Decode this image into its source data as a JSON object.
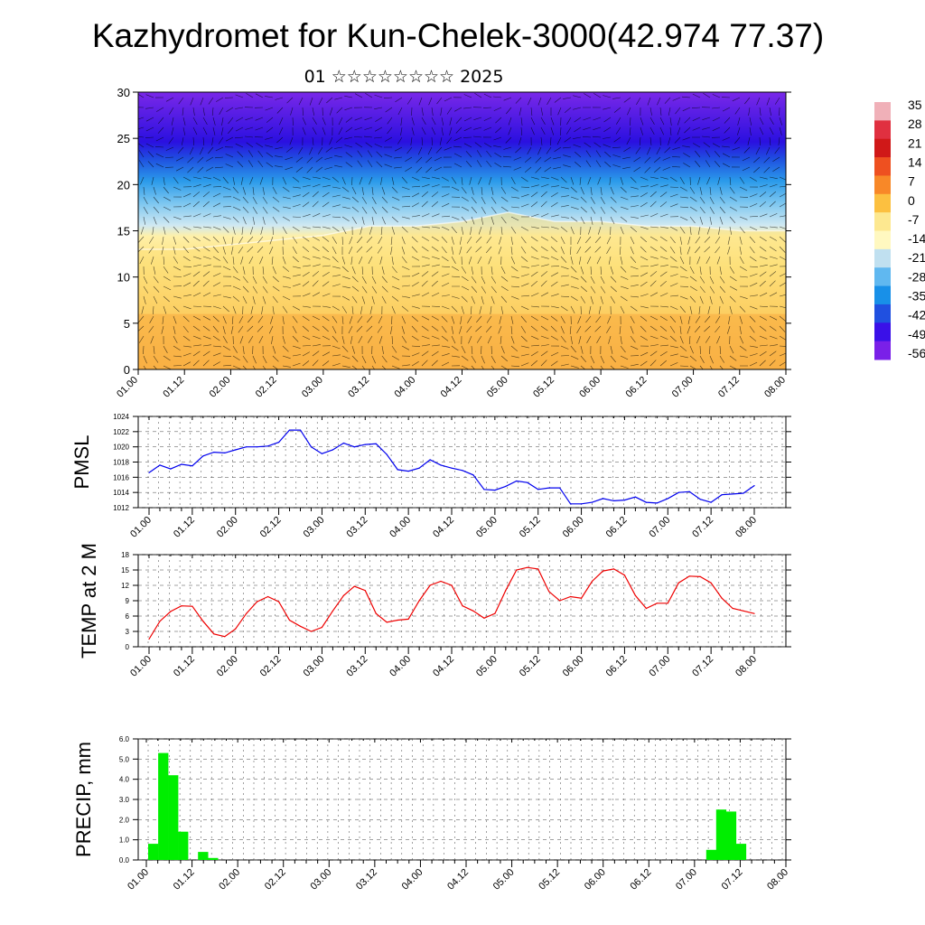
{
  "title": "Kazhydromet for Kun-Chelek-3000(42.974 77.37)",
  "subtitle": "01 ☆☆☆☆☆☆☆☆ 2025",
  "time_labels": [
    "01.00",
    "01.12",
    "02.00",
    "02.12",
    "03.00",
    "03.12",
    "04.00",
    "04.12",
    "05.00",
    "05.12",
    "06.00",
    "06.12",
    "07.00",
    "07.12",
    "08.00"
  ],
  "colorbar": {
    "labels": [
      "35",
      "28",
      "21",
      "14",
      "7",
      "0",
      "-7",
      "-14",
      "-21",
      "-28",
      "-35",
      "-42",
      "-49",
      "-56"
    ],
    "colors": [
      "#f0b0b8",
      "#e03040",
      "#d01818",
      "#ee5020",
      "#f88828",
      "#fcc040",
      "#fde890",
      "#fff8c0",
      "#c0e0f0",
      "#60b8f0",
      "#1890e8",
      "#2050e0",
      "#3a10e8",
      "#7a20e8"
    ]
  },
  "chart_data": [
    {
      "type": "heatmap",
      "title": "",
      "xlabel": "",
      "ylabel": "",
      "x": [
        "01.00",
        "01.12",
        "02.00",
        "02.12",
        "03.00",
        "03.12",
        "04.00",
        "04.12",
        "05.00",
        "05.12",
        "06.00",
        "06.12",
        "07.00",
        "07.12",
        "08.00"
      ],
      "ylim": [
        0,
        30
      ],
      "yticks": [
        0,
        5,
        10,
        15,
        20,
        25,
        30
      ],
      "freezing_level": [
        13,
        13,
        13.5,
        14,
        14.5,
        15.5,
        15.5,
        16,
        17,
        16,
        16,
        15.5,
        15.5,
        15,
        15
      ],
      "units": "temperature (colorbar) with wind barbs"
    },
    {
      "type": "line",
      "ylabel": "PMSL",
      "ylim": [
        1012,
        1024
      ],
      "yticks": [
        1012,
        1014,
        1016,
        1018,
        1020,
        1022,
        1024
      ],
      "series": [
        {
          "color": "#0000ee",
          "values": [
            1016.6,
            1017.6,
            1017.1,
            1017.7,
            1017.5,
            1018.8,
            1019.3,
            1019.2,
            1019.6,
            1020.0,
            1020.0,
            1020.1,
            1020.6,
            1022.2,
            1022.2,
            1020.0,
            1019.1,
            1019.6,
            1020.5,
            1020.0,
            1020.3,
            1020.4,
            1019.0,
            1017.0,
            1016.8,
            1017.2,
            1018.3,
            1017.6,
            1017.2,
            1016.9,
            1016.3,
            1014.4,
            1014.3,
            1014.8,
            1015.5,
            1015.3,
            1014.4,
            1014.6,
            1014.6,
            1012.5,
            1012.5,
            1012.7,
            1013.2,
            1012.9,
            1013.0,
            1013.4,
            1012.7,
            1012.6,
            1013.2,
            1014.0,
            1014.1,
            1013.1,
            1012.7,
            1013.7,
            1013.8,
            1013.9,
            1014.9
          ]
        }
      ]
    },
    {
      "type": "line",
      "ylabel": "TEMP at 2 M",
      "ylim": [
        0,
        18
      ],
      "yticks": [
        0,
        3,
        6,
        9,
        12,
        15,
        18
      ],
      "series": [
        {
          "color": "#ee0000",
          "values": [
            1.5,
            5.0,
            6.9,
            8.0,
            7.9,
            5.0,
            2.5,
            2.0,
            3.5,
            6.5,
            8.8,
            9.8,
            8.8,
            5.2,
            4.0,
            3.0,
            3.8,
            7.0,
            10.0,
            11.8,
            11.0,
            6.5,
            4.8,
            5.2,
            5.4,
            9.0,
            12.0,
            12.8,
            12.0,
            8.0,
            7.0,
            5.6,
            6.5,
            11.0,
            15.0,
            15.5,
            15.2,
            10.8,
            9.0,
            9.8,
            9.5,
            12.8,
            14.8,
            15.2,
            14.0,
            10.0,
            7.5,
            8.5,
            8.5,
            12.5,
            13.8,
            13.7,
            12.5,
            9.5,
            7.5,
            7.0,
            6.5
          ]
        }
      ]
    },
    {
      "type": "bar",
      "ylabel": "PRECIP, mm",
      "ylim": [
        0,
        6
      ],
      "yticks": [
        "0.0",
        "1.0",
        "2.0",
        "3.0",
        "4.0",
        "5.0",
        "6.0"
      ],
      "series": [
        {
          "color": "#00ee00",
          "values": [
            0,
            0.8,
            5.3,
            4.2,
            1.4,
            0,
            0.4,
            0.1,
            0,
            0,
            0,
            0,
            0,
            0,
            0,
            0,
            0,
            0,
            0,
            0,
            0,
            0,
            0,
            0,
            0,
            0,
            0,
            0,
            0,
            0,
            0,
            0,
            0,
            0,
            0,
            0,
            0,
            0,
            0,
            0,
            0,
            0,
            0,
            0,
            0,
            0,
            0,
            0,
            0,
            0,
            0,
            0,
            0,
            0,
            0,
            0,
            0,
            0.5,
            2.5,
            2.4,
            0.8,
            0,
            0,
            0,
            0
          ]
        }
      ]
    }
  ]
}
